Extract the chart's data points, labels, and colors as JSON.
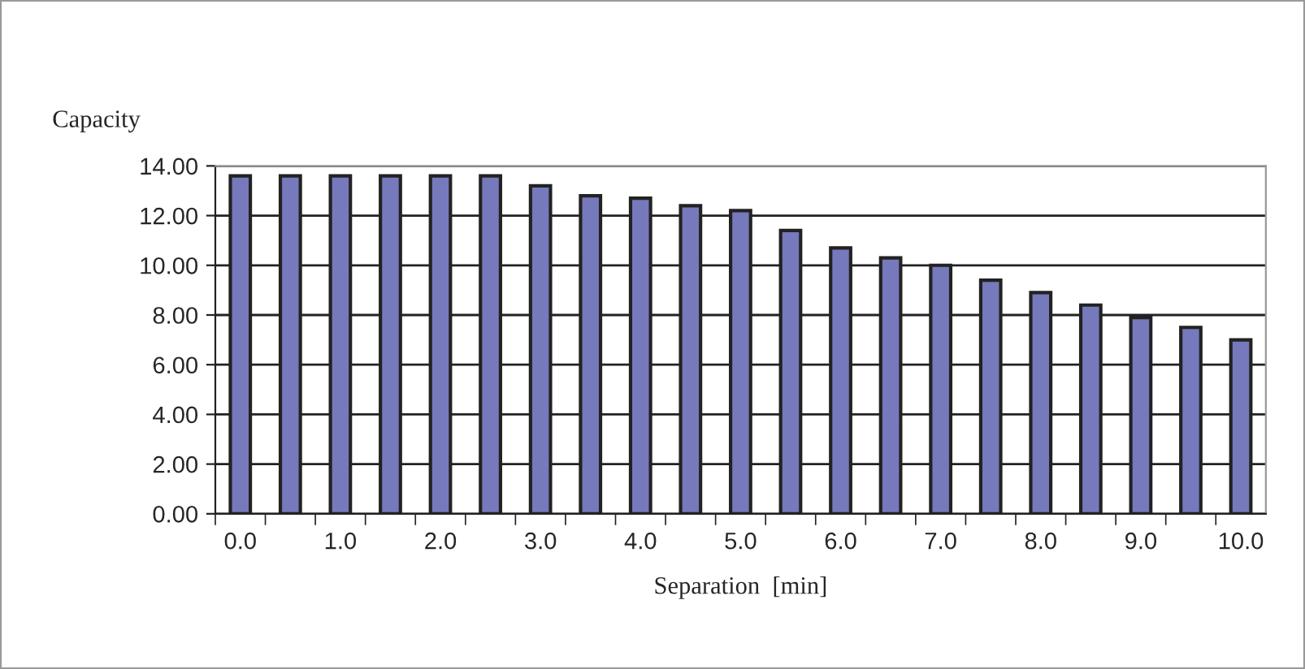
{
  "chart_data": {
    "type": "bar",
    "ylabel": "Capacity",
    "xlabel": "Separation  [min]",
    "categories": [
      "0.0",
      null,
      "1.0",
      null,
      "2.0",
      null,
      "3.0",
      null,
      "4.0",
      null,
      "5.0",
      null,
      "6.0",
      null,
      "7.0",
      null,
      "8.0",
      null,
      "9.0",
      null,
      "10.0"
    ],
    "values": [
      13.6,
      13.6,
      13.6,
      13.6,
      13.6,
      13.6,
      13.2,
      12.8,
      12.7,
      12.4,
      12.2,
      11.4,
      10.7,
      10.3,
      10.0,
      9.4,
      8.9,
      8.4,
      7.9,
      7.5,
      7.0
    ],
    "color": "#7679bb",
    "ylim": [
      0,
      14
    ],
    "yticks": [
      {
        "value": 0,
        "label": "0.00"
      },
      {
        "value": 2,
        "label": "2.00"
      },
      {
        "value": 4,
        "label": "4.00"
      },
      {
        "value": 6,
        "label": "6.00"
      },
      {
        "value": 8,
        "label": "8.00"
      },
      {
        "value": 10,
        "label": "10.00"
      },
      {
        "value": 12,
        "label": "12.00"
      },
      {
        "value": 14,
        "label": "14.00"
      }
    ],
    "grid": "y",
    "legend": false
  }
}
